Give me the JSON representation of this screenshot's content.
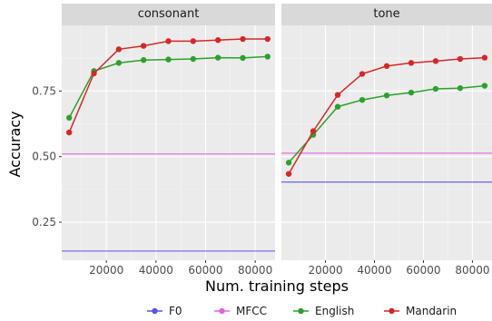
{
  "chart_data": {
    "type": "line",
    "xlabel": "Num. training steps",
    "ylabel": "Accuracy",
    "xlim": [
      2000,
      88000
    ],
    "ylim": [
      0.105,
      1.0
    ],
    "x_ticks": [
      20000,
      40000,
      60000,
      80000
    ],
    "x_tick_labels": [
      "20000",
      "40000",
      "60000",
      "80000"
    ],
    "y_ticks": [
      0.25,
      0.5,
      0.75
    ],
    "y_tick_labels": [
      "0.25",
      "0.50",
      "0.75"
    ],
    "grid": true,
    "legend_position": "bottom",
    "legend": [
      {
        "name": "F0",
        "color": "#5555ee"
      },
      {
        "name": "MFCC",
        "color": "#e067e0"
      },
      {
        "name": "English",
        "color": "#2ca02c"
      },
      {
        "name": "Mandarin",
        "color": "#d62728"
      }
    ],
    "panels": [
      {
        "title": "consonant",
        "series": [
          {
            "name": "F0",
            "kind": "hline",
            "y": 0.14,
            "color": "#5555ee"
          },
          {
            "name": "MFCC",
            "kind": "hline",
            "y": 0.51,
            "color": "#e067e0"
          },
          {
            "name": "English",
            "kind": "line",
            "color": "#2ca02c",
            "x": [
              5000,
              15000,
              25000,
              35000,
              45000,
              55000,
              65000,
              75000,
              85000
            ],
            "y": [
              0.648,
              0.826,
              0.857,
              0.868,
              0.87,
              0.872,
              0.877,
              0.876,
              0.881
            ]
          },
          {
            "name": "Mandarin",
            "kind": "line",
            "color": "#d62728",
            "x": [
              5000,
              15000,
              25000,
              35000,
              45000,
              55000,
              65000,
              75000,
              85000
            ],
            "y": [
              0.592,
              0.817,
              0.909,
              0.922,
              0.94,
              0.94,
              0.944,
              0.948,
              0.948
            ]
          }
        ]
      },
      {
        "title": "tone",
        "series": [
          {
            "name": "F0",
            "kind": "hline",
            "y": 0.403,
            "color": "#5555ee"
          },
          {
            "name": "MFCC",
            "kind": "hline",
            "y": 0.513,
            "color": "#e067e0"
          },
          {
            "name": "English",
            "kind": "line",
            "color": "#2ca02c",
            "x": [
              5000,
              15000,
              25000,
              35000,
              45000,
              55000,
              65000,
              75000,
              85000
            ],
            "y": [
              0.477,
              0.583,
              0.69,
              0.716,
              0.733,
              0.744,
              0.758,
              0.761,
              0.77
            ]
          },
          {
            "name": "Mandarin",
            "kind": "line",
            "color": "#d62728",
            "x": [
              5000,
              15000,
              25000,
              35000,
              45000,
              55000,
              65000,
              75000,
              85000
            ],
            "y": [
              0.434,
              0.597,
              0.735,
              0.815,
              0.845,
              0.857,
              0.864,
              0.872,
              0.877
            ]
          }
        ]
      }
    ]
  }
}
